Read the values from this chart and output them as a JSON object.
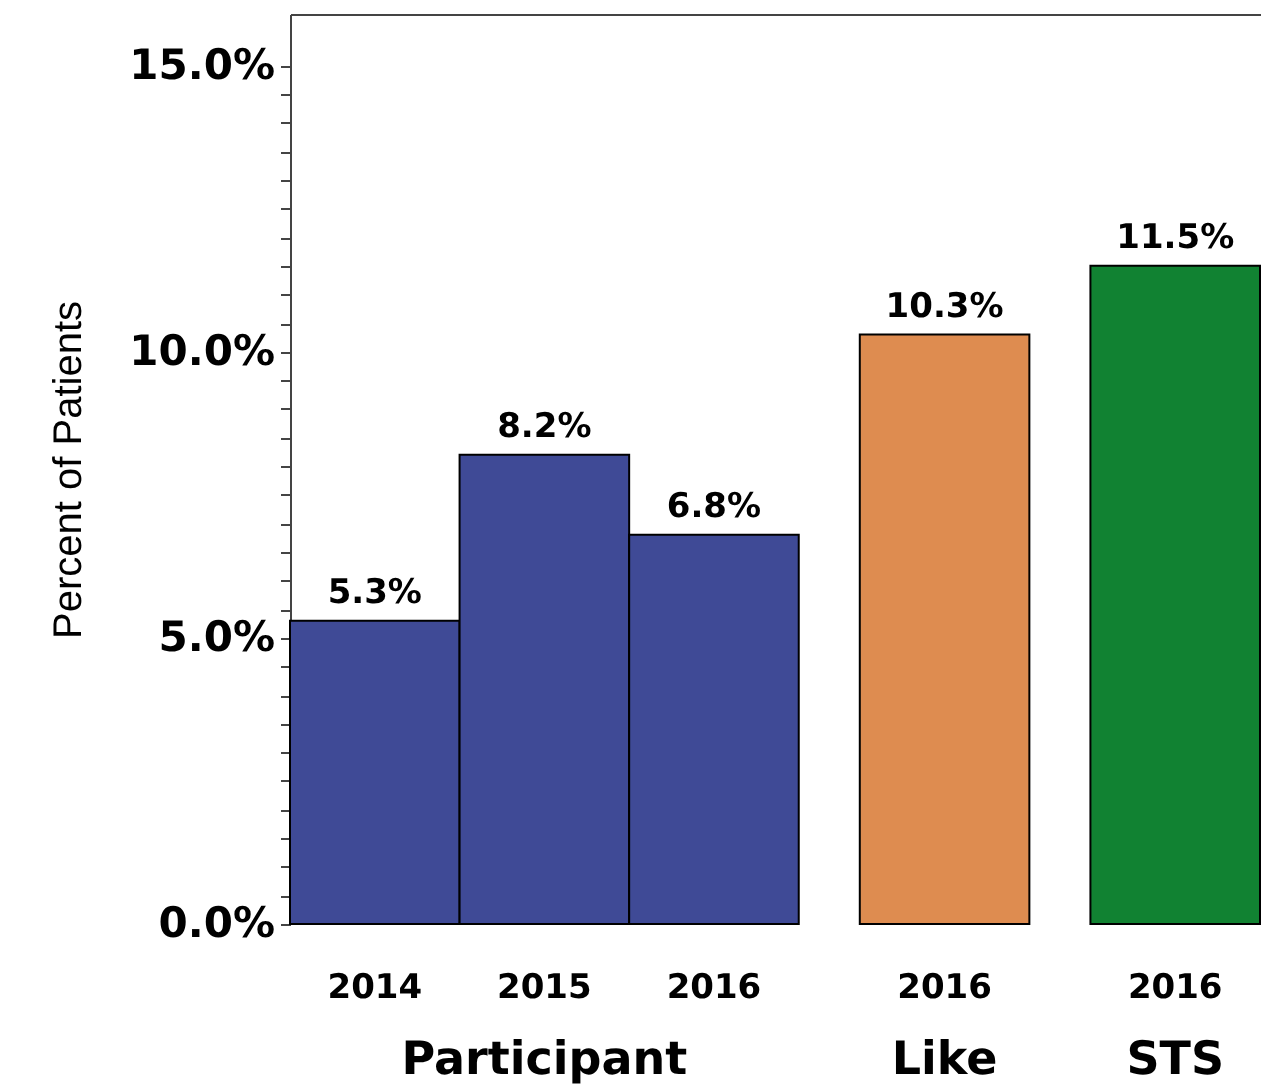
{
  "chart_data": {
    "type": "bar",
    "ylabel": "Percent of Patients",
    "categories": [
      "2014",
      "2015",
      "2016",
      "2016",
      "2016"
    ],
    "series": [
      {
        "name": "Participant",
        "color": "#3f4a96",
        "values": [
          5.3,
          8.2,
          6.8,
          null,
          null
        ],
        "value_labels": [
          "5.3%",
          "8.2%",
          "6.8%",
          null,
          null
        ]
      },
      {
        "name": "Like",
        "color": "#de8c50",
        "values": [
          null,
          null,
          null,
          10.3,
          null
        ],
        "value_labels": [
          null,
          null,
          null,
          "10.3%",
          null
        ]
      },
      {
        "name": "STS",
        "color": "#118232",
        "values": [
          null,
          null,
          null,
          null,
          11.5
        ],
        "value_labels": [
          null,
          null,
          null,
          null,
          "11.5%"
        ]
      }
    ],
    "ylim": [
      0,
      15.9
    ],
    "yticks": [
      {
        "value": 0,
        "label": "0.0%"
      },
      {
        "value": 0.5,
        "label": null
      },
      {
        "value": 1,
        "label": null
      },
      {
        "value": 1.5,
        "label": null
      },
      {
        "value": 2,
        "label": null
      },
      {
        "value": 2.5,
        "label": null
      },
      {
        "value": 3,
        "label": null
      },
      {
        "value": 3.5,
        "label": null
      },
      {
        "value": 4,
        "label": null
      },
      {
        "value": 4.5,
        "label": null
      },
      {
        "value": 5,
        "label": "5.0%"
      },
      {
        "value": 5.5,
        "label": null
      },
      {
        "value": 6,
        "label": null
      },
      {
        "value": 6.5,
        "label": null
      },
      {
        "value": 7,
        "label": null
      },
      {
        "value": 7.5,
        "label": null
      },
      {
        "value": 8,
        "label": null
      },
      {
        "value": 8.5,
        "label": null
      },
      {
        "value": 9,
        "label": null
      },
      {
        "value": 9.5,
        "label": null
      },
      {
        "value": 10,
        "label": "10.0%"
      },
      {
        "value": 10.5,
        "label": null
      },
      {
        "value": 11,
        "label": null
      },
      {
        "value": 11.5,
        "label": null
      },
      {
        "value": 12,
        "label": null
      },
      {
        "value": 12.5,
        "label": null
      },
      {
        "value": 13,
        "label": null
      },
      {
        "value": 13.5,
        "label": null
      },
      {
        "value": 14,
        "label": null
      },
      {
        "value": 14.5,
        "label": null
      },
      {
        "value": 15,
        "label": "15.0%"
      }
    ]
  }
}
